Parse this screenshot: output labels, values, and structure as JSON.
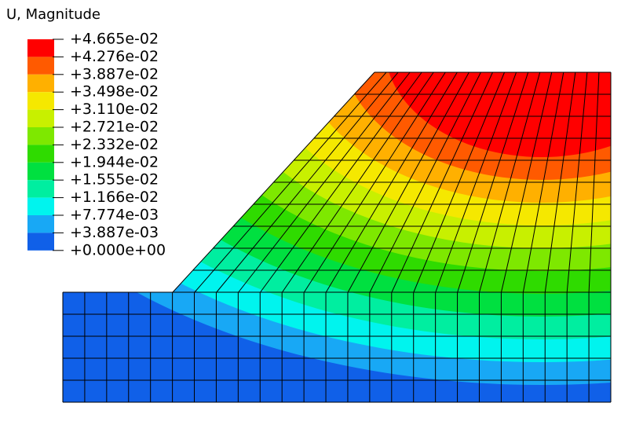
{
  "legend": {
    "title": "U, Magnitude",
    "labels": [
      "+4.665e-02",
      "+4.276e-02",
      "+3.887e-02",
      "+3.498e-02",
      "+3.110e-02",
      "+2.721e-02",
      "+2.332e-02",
      "+1.944e-02",
      "+1.555e-02",
      "+1.166e-02",
      "+7.774e-03",
      "+3.887e-03",
      "+0.000e+00"
    ],
    "colors": [
      "#ff0000",
      "#ff5a00",
      "#ffb000",
      "#f5e800",
      "#c8f000",
      "#7ee800",
      "#2fdb00",
      "#00e040",
      "#00eea0",
      "#00f4ee",
      "#18a8f5",
      "#1060e8",
      "#0018e0"
    ]
  }
}
